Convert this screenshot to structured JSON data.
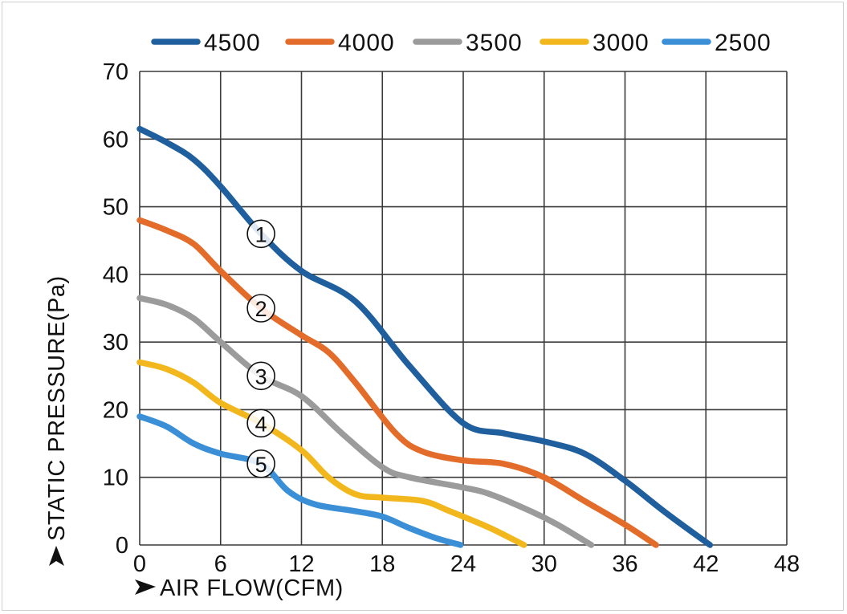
{
  "chart_data": {
    "type": "line",
    "xlabel": "AIR FLOW(CFM)",
    "ylabel": "STATIC PRESSURE(Pa)",
    "xlim": [
      0,
      48
    ],
    "ylim": [
      0,
      70
    ],
    "xticks": [
      "0",
      "6",
      "12",
      "18",
      "24",
      "30",
      "36",
      "42",
      "48"
    ],
    "yticks": [
      "0",
      "10",
      "20",
      "30",
      "40",
      "50",
      "60",
      "70"
    ],
    "grid": true,
    "legend_position": "top",
    "series": [
      {
        "name": "4500",
        "color": "#1f5f9e",
        "marker": "1",
        "x": [
          0,
          2,
          4,
          6,
          9,
          12,
          16,
          20,
          24,
          27,
          30,
          33,
          36,
          39,
          42.3
        ],
        "y": [
          61.5,
          59.5,
          57,
          53,
          46,
          40.5,
          36,
          26.5,
          18,
          16.5,
          15.3,
          13.5,
          9.5,
          4.8,
          0
        ]
      },
      {
        "name": "4000",
        "color": "#e36c2a",
        "marker": "2",
        "x": [
          0,
          2,
          4,
          6,
          9,
          12,
          14,
          16,
          19,
          21,
          24,
          27,
          30,
          33,
          36,
          38.3
        ],
        "y": [
          48,
          46.5,
          44.5,
          40.5,
          35,
          31,
          28.5,
          24,
          16.5,
          13.8,
          12.5,
          12,
          10,
          6.5,
          3,
          0
        ]
      },
      {
        "name": "3500",
        "color": "#9b9b9b",
        "marker": "3",
        "x": [
          0,
          2,
          4,
          6,
          9,
          12,
          15,
          18,
          20,
          24,
          26,
          29,
          31,
          33.5
        ],
        "y": [
          36.5,
          35.5,
          33.5,
          30,
          25,
          22,
          16.5,
          11.5,
          10,
          8.5,
          7.5,
          5,
          3,
          0
        ]
      },
      {
        "name": "3000",
        "color": "#f2b71c",
        "marker": "4",
        "x": [
          0,
          2,
          4,
          6,
          9,
          12,
          14,
          16,
          18,
          21,
          23,
          26,
          28.5
        ],
        "y": [
          27,
          26,
          24,
          21,
          18,
          14,
          10,
          7.5,
          7,
          6.5,
          5,
          2.5,
          0
        ]
      },
      {
        "name": "2500",
        "color": "#3a8fd6",
        "marker": "5",
        "x": [
          0,
          2,
          4,
          6,
          9,
          11,
          13,
          16,
          18,
          20,
          22,
          23.8
        ],
        "y": [
          19,
          17.5,
          15,
          13.5,
          12,
          8,
          6,
          5,
          4.2,
          2.5,
          1,
          0
        ]
      }
    ]
  }
}
